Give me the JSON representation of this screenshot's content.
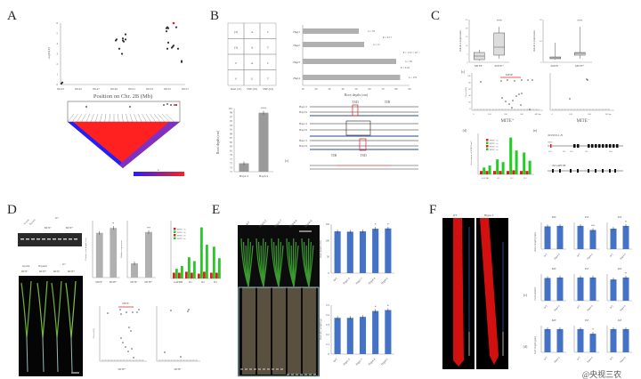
{
  "panel_labels": [
    "A",
    "B",
    "C",
    "D",
    "E",
    "F"
  ],
  "colors": {
    "grey_bar": "#b0b0b0",
    "blue_bar": "#4472c4",
    "red": "#e02020",
    "green": "#22cc22",
    "ld_high": "#ff2020",
    "ld_low": "#2020ff"
  },
  "A": {
    "xlabel": "Position on Chr. 2B (Mb)",
    "ylabel": "-log10(P)",
    "xticks": [
      "89.43",
      "89.45",
      "89.47",
      "89.49",
      "89.51",
      "89.53",
      "89.55",
      "89.57"
    ],
    "yticks": [
      "0",
      "1",
      "2",
      "3",
      "4",
      "5",
      "6"
    ],
    "xlim": [
      89.43,
      89.57
    ],
    "ylim": [
      0,
      6
    ],
    "points": [
      [
        89.431,
        0.1
      ],
      [
        89.432,
        0.2
      ],
      [
        89.492,
        4.3
      ],
      [
        89.493,
        4.4
      ],
      [
        89.496,
        3.5
      ],
      [
        89.499,
        3.0
      ],
      [
        89.5,
        4.5
      ],
      [
        89.5,
        4.3
      ],
      [
        89.501,
        4.2
      ],
      [
        89.503,
        4.9
      ],
      [
        89.503,
        4.4
      ],
      [
        89.549,
        5.5
      ],
      [
        89.549,
        5.2
      ],
      [
        89.55,
        5.6
      ],
      [
        89.551,
        5.5
      ],
      [
        89.551,
        4.1
      ],
      [
        89.55,
        3.5
      ],
      [
        89.556,
        3.7
      ],
      [
        89.557,
        3.8
      ],
      [
        89.555,
        3.6
      ],
      [
        89.56,
        5.6
      ],
      [
        89.562,
        3.5
      ],
      [
        89.566,
        2.3
      ],
      [
        89.566,
        2.2
      ]
    ],
    "highlight_point": [
      89.557,
      6.0
    ],
    "colorbar_label": "R²"
  },
  "B": {
    "table": {
      "rows": [
        [
          "(3)",
          "A",
          "C"
        ],
        [
          "(3)",
          "A",
          "T"
        ],
        [
          "0",
          "A",
          "C"
        ],
        [
          "0",
          "G",
          "T"
        ]
      ],
      "col_labels": [
        "Indel\n(41)",
        "SNP\n(50)",
        "SNP\n(64)"
      ]
    },
    "hbar": {
      "categories": [
        "Hap1",
        "Hap2",
        "Hap3",
        "Hap4"
      ],
      "values": [
        52,
        56,
        80,
        83
      ],
      "xlim": [
        10,
        90
      ],
      "xticks": [
        "10",
        "20",
        "30",
        "40",
        "50",
        "60",
        "70",
        "80",
        "90"
      ],
      "xlabel": "Root depth (cm)",
      "n_labels": [
        "n = 33",
        "n = 11",
        "n = 50",
        "n = 170"
      ],
      "p_labels": [
        "P = 0.17",
        "P = 1.72 × 10⁻⁵",
        "P = 0.22"
      ]
    },
    "bar": {
      "categories": [
        "Hap1/2",
        "Hap3/4"
      ],
      "values": [
        75,
        99
      ],
      "ylim": [
        71,
        101
      ],
      "yticks": [
        "71",
        "73",
        "75",
        "77",
        "79",
        "81",
        "83",
        "85",
        "87",
        "89",
        "91",
        "93",
        "95",
        "97",
        "99",
        "101"
      ],
      "ylabel": "Root depth (cm)",
      "significance": [
        "",
        "***"
      ]
    },
    "sub_label": "(c)",
    "alignment": {
      "seq_labels": [
        "Hap1/2",
        "Hap3/4",
        "Hap1/2",
        "Hap3/4",
        "Hap1/2",
        "Hap3/4"
      ],
      "tsd": "TSD",
      "tir": "TIR"
    }
  },
  "C": {
    "box1": {
      "categories": [
        "MITE⁻",
        "MITE⁺"
      ],
      "ylabel": "Relative expression",
      "sig": "***",
      "yticks": [
        "0",
        "5",
        "10",
        "15",
        "20",
        "25"
      ]
    },
    "box2": {
      "categories": [
        "MITE⁻",
        "MITE⁺"
      ],
      "ylabel": "Relative expression",
      "sig": "***",
      "yticks": [
        "0",
        "10",
        "20"
      ]
    },
    "c_label": "(c)",
    "d_label": "(d)",
    "e_label": "(e)",
    "scatter1": {
      "xlabel": "MITE⁺",
      "ylabel": "5' level (%)",
      "mite_label": "MITE",
      "xticks": [
        "0",
        "100",
        "200",
        "300",
        "400 bp"
      ],
      "yticks": [
        "0",
        "20",
        "40",
        "60",
        "80",
        "100"
      ]
    },
    "scatter2": {
      "xlabel": "MITE⁻",
      "xticks": [
        "0",
        "100",
        "200",
        "300 bp"
      ]
    },
    "grouped": {
      "categories": [
        "GAPDH",
        "R1",
        "R2",
        "R3"
      ],
      "legend": [
        "MITE⁻ ck",
        "MITE⁺ ck",
        "MITE⁻ trt",
        "MITE⁺ trt"
      ],
      "series_values": [
        [
          0.5,
          0.5,
          0.5,
          0.5
        ],
        [
          1.0,
          2.2,
          5.4,
          3.2
        ],
        [
          0.5,
          0.5,
          0.6,
          0.5
        ],
        [
          1.3,
          1.8,
          3.5,
          2.0
        ]
      ],
      "ylim": [
        0,
        6
      ],
      "ylabel": "Enrichment of H3K27me3"
    },
    "genes": [
      "TaVSNL1-B",
      "TaGAPDH"
    ],
    "gene_marks": [
      "MITE",
      "R0",
      "R1",
      "R2",
      "R3",
      "R4"
    ]
  },
  "D": {
    "gel_header": [
      "Aywalk",
      "Baynelli",
      "D+"
    ],
    "gel_groups": [
      "MITE⁻",
      "MITE⁺"
    ],
    "plant_header": [
      "Aywalk",
      "Baynelli",
      "D+"
    ],
    "plant_sub": [
      "MITE⁻",
      "MITE⁺",
      "MITE⁻",
      "MITE⁺"
    ],
    "bar1": {
      "categories": [
        "MITE⁻",
        "MITE⁺"
      ],
      "values": [
        11,
        12.2
      ],
      "ylim": [
        0,
        14
      ],
      "ylabel": "Primary root length (cm)",
      "sig": [
        "",
        "*"
      ]
    },
    "bar2": {
      "categories": [
        "MITE⁻",
        "MITE⁺"
      ],
      "values": [
        1,
        3.2
      ],
      "ylim": [
        0,
        4
      ],
      "ylabel": "Relative expression",
      "sig": [
        "",
        "**"
      ]
    },
    "grouped": {
      "categories": [
        "GAPDH",
        "R1",
        "R2",
        "R3"
      ],
      "legend": [
        "MITE⁻ ck",
        "MITE⁺ ck",
        "MITE⁻ trt",
        "MITE⁺ trt"
      ],
      "series_values": [
        [
          0.6,
          0.7,
          0.5,
          0.6
        ],
        [
          1.0,
          2.2,
          5.3,
          3.3
        ],
        [
          0.6,
          0.6,
          0.7,
          0.6
        ],
        [
          1.3,
          1.8,
          3.5,
          2.1
        ]
      ],
      "ylim": [
        0,
        6
      ]
    },
    "scatter_label": "MITE",
    "scatter1_xlabel": "MITE⁺",
    "scatter2_xlabel": "MITE⁻",
    "scatter_ylabel": "5' level (%)"
  },
  "E": {
    "genotypes": [
      "WT",
      "Hap2-5",
      "Hap2-7",
      "Hap4-4",
      "Hap4-6"
    ],
    "root_depth": {
      "values": [
        128,
        127,
        128,
        136,
        137
      ],
      "ylim": [
        0,
        150
      ],
      "yticks": [
        "0",
        "50",
        "100",
        "150"
      ],
      "ylabel": "Root depth (cm)",
      "sig": [
        "",
        "",
        "",
        "*",
        "*"
      ]
    },
    "root_weight": {
      "values": [
        0.37,
        0.37,
        0.38,
        0.44,
        0.45
      ],
      "ylim": [
        0,
        0.5
      ],
      "yticks": [
        "0",
        "0.1",
        "0.2",
        "0.3",
        "0.4",
        "0.5"
      ],
      "ylabel": "Root dry weight (g)",
      "sig": [
        "",
        "",
        "",
        "*",
        "*"
      ]
    }
  },
  "F": {
    "images": [
      "WT",
      "Hap4-5"
    ],
    "zones": [
      "MZ",
      "EZ",
      "DZ"
    ],
    "row_labels": [
      "",
      "(c)",
      "(d)"
    ],
    "row_ylabels": [
      "Zone length (mm)",
      "Cell number",
      "Cell length (μm)"
    ],
    "genotypes": [
      "WT",
      "Hap4-5"
    ],
    "values": [
      [
        [
          0.95,
          0.97
        ],
        [
          3.4,
          2.8
        ],
        [
          11,
          12.5
        ]
      ],
      [
        [
          88,
          90
        ],
        [
          45,
          45
        ],
        [
          75,
          82
        ]
      ],
      [
        [
          17,
          17
        ],
        [
          100,
          80
        ],
        [
          190,
          190
        ]
      ]
    ],
    "sig": [
      [
        [
          "",
          ""
        ],
        [
          "",
          "**"
        ],
        [
          "",
          "*"
        ]
      ],
      [
        [
          "",
          ""
        ],
        [
          "",
          ""
        ],
        [
          "",
          "*"
        ]
      ],
      [
        [
          "",
          ""
        ],
        [
          "",
          "*"
        ],
        [
          "",
          ""
        ]
      ]
    ],
    "watermark": "@央视三农"
  }
}
